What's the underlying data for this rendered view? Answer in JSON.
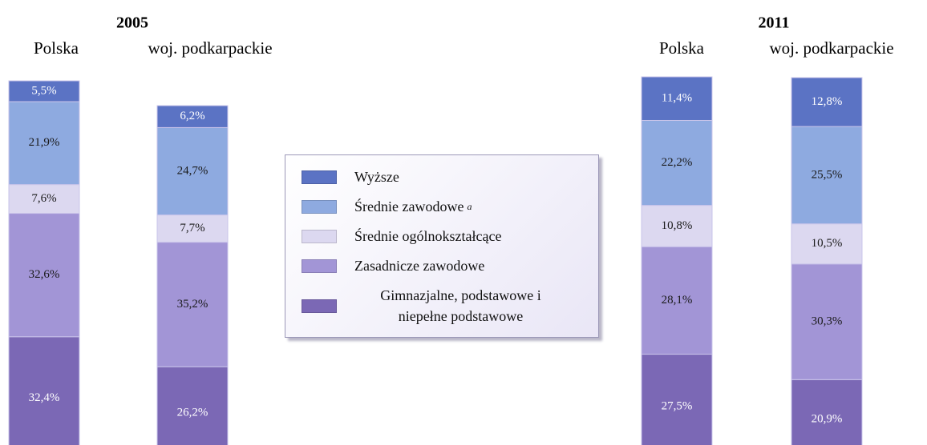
{
  "chart_data": {
    "type": "bar",
    "stacked": true,
    "groups": [
      {
        "title": "2005",
        "categories": [
          "Polska",
          "woj. podkarpackie"
        ]
      },
      {
        "title": "2011",
        "categories": [
          "Polska",
          "woj. podkarpackie"
        ]
      }
    ],
    "ylim": [
      0,
      100
    ],
    "series": [
      {
        "name": "Gimnazjalne, podstawowe i niepełne podstawowe",
        "color": "#7b68b5",
        "label_color": "#ffffff",
        "values": [
          32.4,
          26.2,
          27.5,
          20.9
        ],
        "value_labels": [
          "32,4%",
          "26,2%",
          "27,5%",
          "20,9%"
        ]
      },
      {
        "name": "Zasadnicze zawodowe",
        "color": "#a295d6",
        "label_color": "#1a1a1a",
        "values": [
          32.6,
          35.2,
          28.1,
          30.3
        ],
        "value_labels": [
          "32,6%",
          "35,2%",
          "28,1%",
          "30,3%"
        ]
      },
      {
        "name": "Średnie ogólnokształcące",
        "color": "#dcd8f0",
        "label_color": "#1a1a1a",
        "values": [
          7.6,
          7.7,
          10.8,
          10.5
        ],
        "value_labels": [
          "7,6%",
          "7,7%",
          "10,8%",
          "10,5%"
        ]
      },
      {
        "name": "Średnie zawodowe",
        "superscript": "a",
        "color": "#8eaae0",
        "label_color": "#1a1a1a",
        "values": [
          21.9,
          24.7,
          22.2,
          25.5
        ],
        "value_labels": [
          "21,9%",
          "24,7%",
          "22,2%",
          "25,5%"
        ]
      },
      {
        "name": "Wyższe",
        "color": "#5b73c4",
        "label_color": "#ffffff",
        "values": [
          5.5,
          6.2,
          11.4,
          12.8
        ],
        "value_labels": [
          "5,5%",
          "6,2%",
          "11,4%",
          "12,8%"
        ]
      }
    ]
  }
}
